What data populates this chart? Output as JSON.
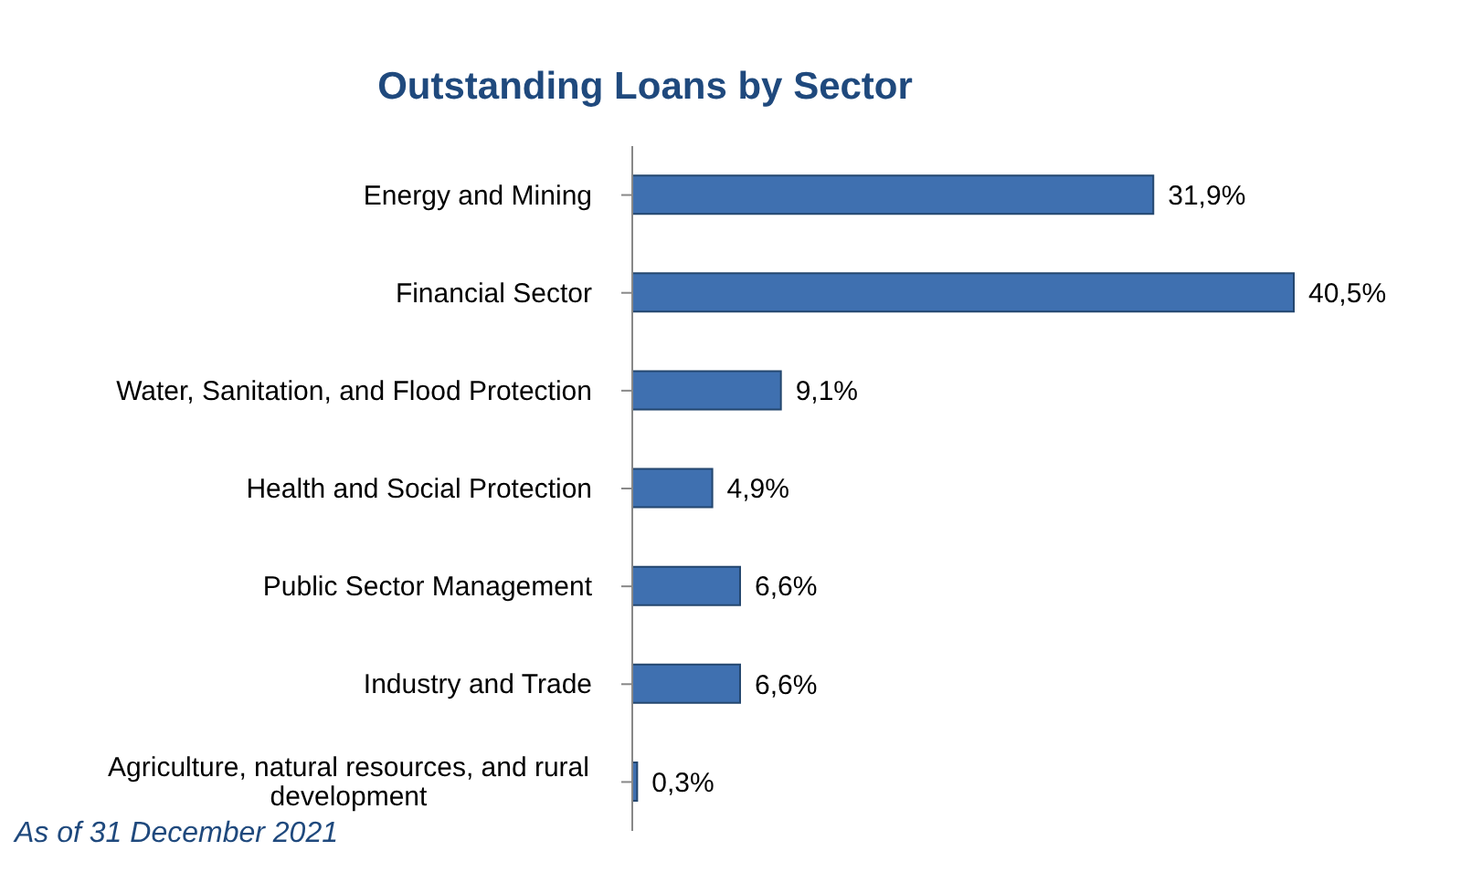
{
  "chart_data": {
    "type": "bar",
    "orientation": "horizontal",
    "title": "Outstanding Loans by Sector",
    "categories": [
      "Energy and Mining",
      "Financial Sector",
      "Water, Sanitation, and Flood Protection",
      "Health and Social Protection",
      "Public Sector Management",
      "Industry and Trade",
      "Agriculture, natural resources, and rural development"
    ],
    "values": [
      31.9,
      40.5,
      9.1,
      4.9,
      6.6,
      6.6,
      0.3
    ],
    "value_labels": [
      "31,9%",
      "40,5%",
      "9,1%",
      "4,9%",
      "6,6%",
      "6,6%",
      "0,3%"
    ],
    "color": "#3f70b0",
    "annotations": [
      "As of 31 December 2021"
    ],
    "grid": false,
    "legend": false
  }
}
